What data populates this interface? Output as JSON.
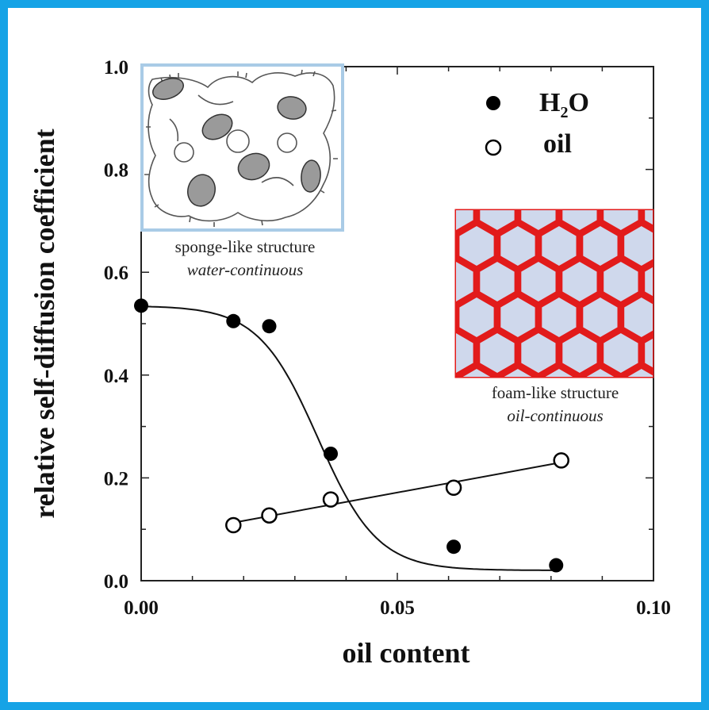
{
  "chart_data": {
    "type": "scatter",
    "xlabel": "oil content",
    "ylabel": "relative self-diffusion coefficient",
    "xlim": [
      0,
      0.1
    ],
    "ylim": [
      0,
      1.0
    ],
    "xticks": [
      "0.00",
      "0.05",
      "0.10"
    ],
    "yticks": [
      "0.0",
      "0.2",
      "0.4",
      "0.6",
      "0.8",
      "1.0"
    ],
    "grid": false,
    "legend_position": "top-right",
    "series": [
      {
        "name": "H2O",
        "marker": "filled-circle",
        "x": [
          0.0,
          0.018,
          0.025,
          0.037,
          0.061,
          0.081
        ],
        "y": [
          0.535,
          0.505,
          0.495,
          0.247,
          0.066,
          0.03
        ],
        "fit": "sigmoidal"
      },
      {
        "name": "oil",
        "marker": "open-circle",
        "x": [
          0.018,
          0.025,
          0.037,
          0.061,
          0.082
        ],
        "y": [
          0.108,
          0.127,
          0.158,
          0.181,
          0.234
        ],
        "fit": "linear"
      }
    ],
    "legend": [
      {
        "label_main": "H",
        "label_sub": "2",
        "label_tail": "O",
        "marker": "filled-circle"
      },
      {
        "label_main": "oil",
        "label_sub": "",
        "label_tail": "",
        "marker": "open-circle"
      }
    ],
    "annotations": [
      {
        "line1": "sponge-like structure",
        "line2": "water-continuous",
        "position": "top-left"
      },
      {
        "line1": "foam-like structure",
        "line2": "oil-continuous",
        "position": "right"
      }
    ]
  },
  "colors": {
    "frame": "#16a3e6",
    "sponge_box": "#a9cbe6",
    "foam_wall": "#e21b1b",
    "foam_cell": "#cfd8ec"
  }
}
